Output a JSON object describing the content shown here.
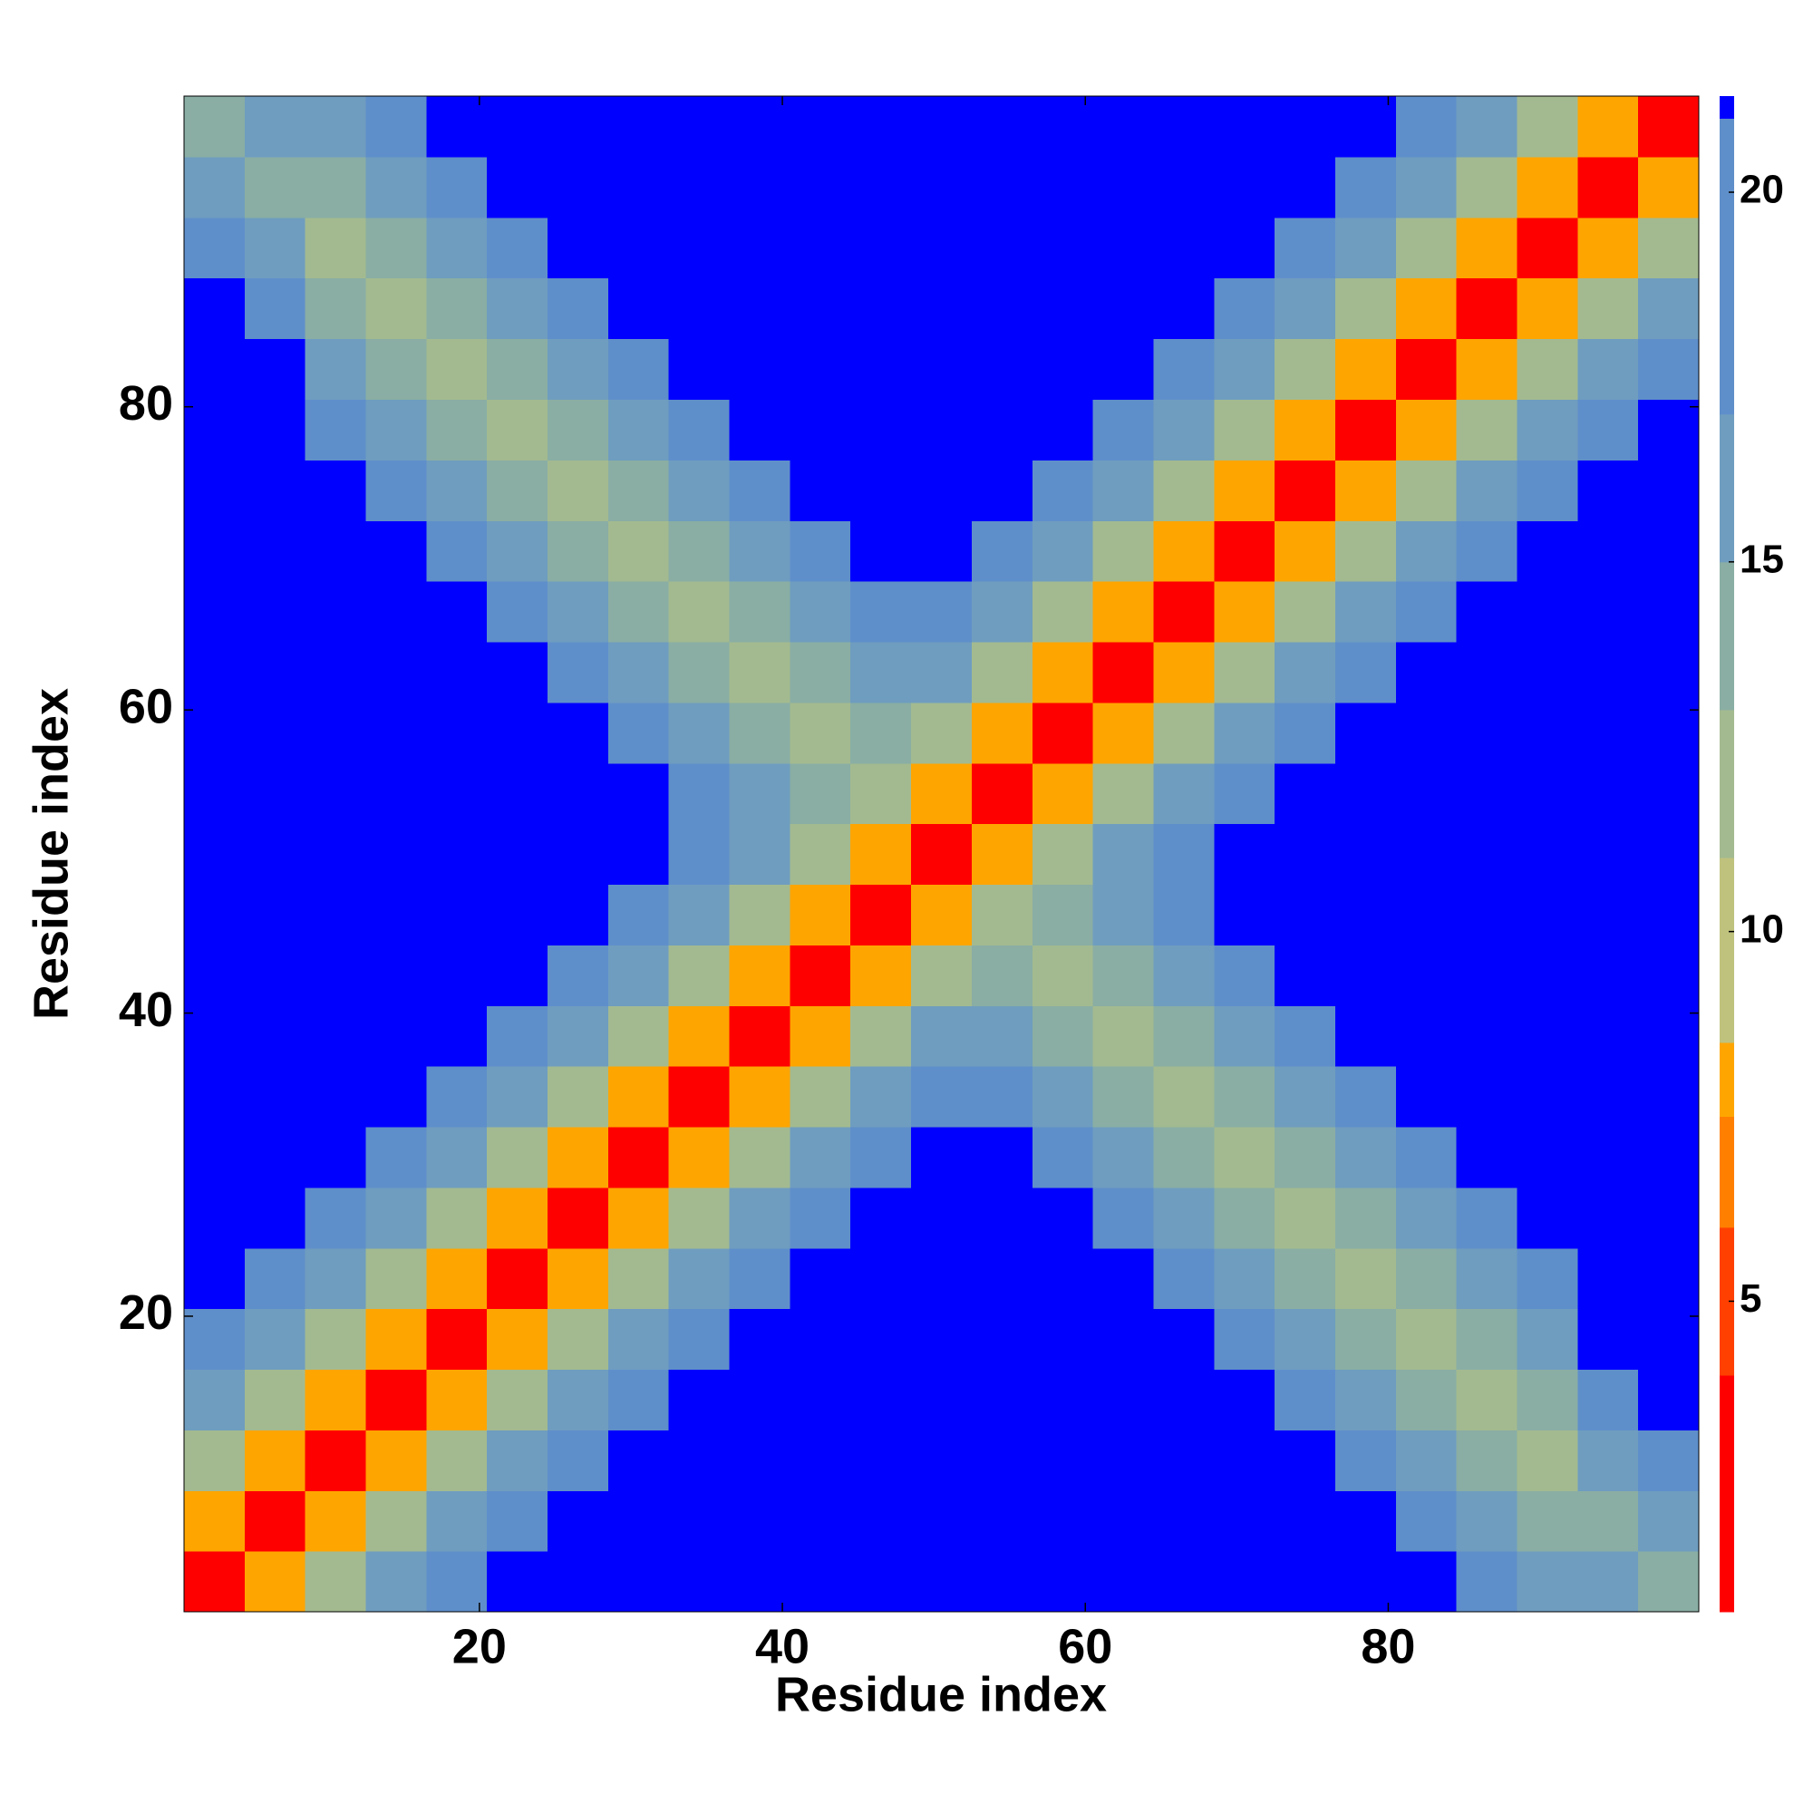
{
  "chart_data": {
    "type": "heatmap",
    "xlabel": "Residue index",
    "ylabel": "Residue index",
    "x_bins": [
      0.5,
      4.5,
      8.5,
      12.5,
      16.5,
      20.5,
      24.5,
      28.5,
      32.5,
      36.5,
      40.5,
      44.5,
      48.5,
      52.5,
      56.5,
      60.5,
      64.5,
      68.5,
      72.5,
      76.5,
      80.5,
      84.5,
      88.5,
      92.5,
      96.5,
      100.5
    ],
    "y_bins": [
      0.5,
      4.5,
      8.5,
      12.5,
      16.5,
      20.5,
      24.5,
      28.5,
      32.5,
      36.5,
      40.5,
      44.5,
      48.5,
      52.5,
      56.5,
      60.5,
      64.5,
      68.5,
      72.5,
      76.5,
      80.5,
      84.5,
      88.5,
      92.5,
      96.5,
      100.5
    ],
    "z": [
      [
        2,
        8,
        12,
        16,
        19,
        21,
        21,
        21,
        21,
        21,
        21,
        21,
        21,
        21,
        21,
        21,
        21,
        21,
        21,
        21,
        21,
        18,
        15,
        16,
        14
      ],
      [
        8,
        2,
        8,
        12,
        16,
        19,
        21,
        21,
        21,
        21,
        21,
        21,
        21,
        21,
        21,
        21,
        21,
        21,
        21,
        21,
        18,
        15,
        13,
        14,
        16
      ],
      [
        12,
        8,
        2,
        8,
        12,
        16,
        19,
        21,
        21,
        21,
        21,
        21,
        21,
        21,
        21,
        21,
        21,
        21,
        21,
        18,
        15,
        13,
        11,
        16,
        18
      ],
      [
        16,
        12,
        8,
        2,
        8,
        12,
        16,
        19,
        21,
        21,
        21,
        21,
        21,
        21,
        21,
        21,
        21,
        21,
        18,
        15,
        13,
        11,
        13,
        18,
        21
      ],
      [
        19,
        16,
        12,
        8,
        2,
        8,
        12,
        16,
        19,
        21,
        21,
        21,
        21,
        21,
        21,
        21,
        21,
        18,
        15,
        13,
        11,
        13,
        15,
        21,
        21
      ],
      [
        21,
        19,
        16,
        12,
        8,
        2,
        8,
        12,
        16,
        19,
        21,
        21,
        21,
        21,
        21,
        21,
        18,
        15,
        13,
        11,
        13,
        15,
        18,
        21,
        21
      ],
      [
        21,
        21,
        19,
        16,
        12,
        8,
        2,
        8,
        12,
        16,
        19,
        21,
        21,
        21,
        21,
        18,
        15,
        13,
        11,
        13,
        15,
        18,
        21,
        21,
        21
      ],
      [
        21,
        21,
        21,
        19,
        16,
        12,
        8,
        2,
        8,
        12,
        16,
        19,
        21,
        21,
        18,
        15,
        13,
        11,
        13,
        15,
        18,
        21,
        21,
        21,
        21
      ],
      [
        21,
        21,
        21,
        21,
        19,
        16,
        12,
        8,
        2,
        8,
        12,
        16,
        19,
        18,
        15,
        13,
        11,
        13,
        15,
        18,
        21,
        21,
        21,
        21,
        21
      ],
      [
        21,
        21,
        21,
        21,
        21,
        19,
        16,
        12,
        8,
        2,
        8,
        12,
        16,
        15,
        13,
        11,
        13,
        15,
        18,
        21,
        21,
        21,
        21,
        21,
        21
      ],
      [
        21,
        21,
        21,
        21,
        21,
        21,
        19,
        16,
        12,
        8,
        2,
        8,
        12,
        13,
        11,
        13,
        15,
        18,
        21,
        21,
        21,
        21,
        21,
        21,
        21
      ],
      [
        21,
        21,
        21,
        21,
        21,
        21,
        21,
        19,
        16,
        12,
        8,
        2,
        8,
        11,
        13,
        15,
        18,
        21,
        21,
        21,
        21,
        21,
        21,
        21,
        21
      ],
      [
        21,
        21,
        21,
        21,
        21,
        21,
        21,
        21,
        19,
        16,
        12,
        8,
        2,
        8,
        12,
        16,
        19,
        21,
        21,
        21,
        21,
        21,
        21,
        21,
        21
      ],
      [
        21,
        21,
        21,
        21,
        21,
        21,
        21,
        21,
        18,
        15,
        13,
        11,
        8,
        2,
        8,
        12,
        16,
        19,
        21,
        21,
        21,
        21,
        21,
        21,
        21
      ],
      [
        21,
        21,
        21,
        21,
        21,
        21,
        21,
        18,
        15,
        13,
        11,
        13,
        12,
        8,
        2,
        8,
        12,
        16,
        19,
        21,
        21,
        21,
        21,
        21,
        21
      ],
      [
        21,
        21,
        21,
        21,
        21,
        21,
        18,
        15,
        13,
        11,
        13,
        15,
        16,
        12,
        8,
        2,
        8,
        12,
        16,
        19,
        21,
        21,
        21,
        21,
        21
      ],
      [
        21,
        21,
        21,
        21,
        21,
        18,
        15,
        13,
        11,
        13,
        15,
        18,
        19,
        16,
        12,
        8,
        2,
        8,
        12,
        16,
        19,
        21,
        21,
        21,
        21
      ],
      [
        21,
        21,
        21,
        21,
        18,
        15,
        13,
        11,
        13,
        15,
        18,
        21,
        21,
        19,
        16,
        12,
        8,
        2,
        8,
        12,
        16,
        19,
        21,
        21,
        21
      ],
      [
        21,
        21,
        21,
        18,
        15,
        13,
        11,
        13,
        15,
        18,
        21,
        21,
        21,
        21,
        19,
        16,
        12,
        8,
        2,
        8,
        12,
        16,
        19,
        21,
        21
      ],
      [
        21,
        21,
        18,
        15,
        13,
        11,
        13,
        15,
        18,
        21,
        21,
        21,
        21,
        21,
        21,
        19,
        16,
        12,
        8,
        2,
        8,
        12,
        16,
        19,
        21
      ],
      [
        21,
        21,
        15,
        13,
        11,
        13,
        15,
        18,
        21,
        21,
        21,
        21,
        21,
        21,
        21,
        21,
        19,
        16,
        12,
        8,
        2,
        8,
        12,
        16,
        19
      ],
      [
        21,
        18,
        13,
        11,
        13,
        15,
        18,
        21,
        21,
        21,
        21,
        21,
        21,
        21,
        21,
        21,
        21,
        19,
        16,
        12,
        8,
        2,
        8,
        12,
        16
      ],
      [
        18,
        16,
        11,
        13,
        15,
        18,
        21,
        21,
        21,
        21,
        21,
        21,
        21,
        21,
        21,
        21,
        21,
        21,
        19,
        16,
        12,
        8,
        2,
        8,
        12
      ],
      [
        16,
        14,
        13,
        15,
        18,
        21,
        21,
        21,
        21,
        21,
        21,
        21,
        21,
        21,
        21,
        21,
        21,
        21,
        21,
        19,
        16,
        12,
        8,
        2,
        8
      ],
      [
        14,
        16,
        15,
        18,
        21,
        21,
        21,
        21,
        21,
        21,
        21,
        21,
        21,
        21,
        21,
        21,
        21,
        21,
        21,
        21,
        19,
        16,
        12,
        8,
        2
      ]
    ],
    "xlim": [
      0.5,
      100.5
    ],
    "ylim": [
      0.5,
      100.5
    ],
    "xticks": [
      20,
      40,
      60,
      80
    ],
    "yticks": [
      20,
      40,
      60,
      80
    ],
    "colorscale": [
      {
        "value": 0.8,
        "color": "#ff0000"
      },
      {
        "value": 4,
        "color": "#ff4000"
      },
      {
        "value": 6,
        "color": "#ff7f00"
      },
      {
        "value": 7.5,
        "color": "#ffa500"
      },
      {
        "value": 8.5,
        "color": "#bfc27c"
      },
      {
        "value": 11,
        "color": "#a3ba90"
      },
      {
        "value": 13,
        "color": "#8aaea4"
      },
      {
        "value": 15,
        "color": "#6f9dbf"
      },
      {
        "value": 17,
        "color": "#5f8fca"
      },
      {
        "value": 21,
        "color": "#0000ff"
      }
    ],
    "colorbar_lim": [
      0.8,
      21.3
    ],
    "colorbar_ticks": [
      5,
      10,
      15,
      20
    ]
  }
}
